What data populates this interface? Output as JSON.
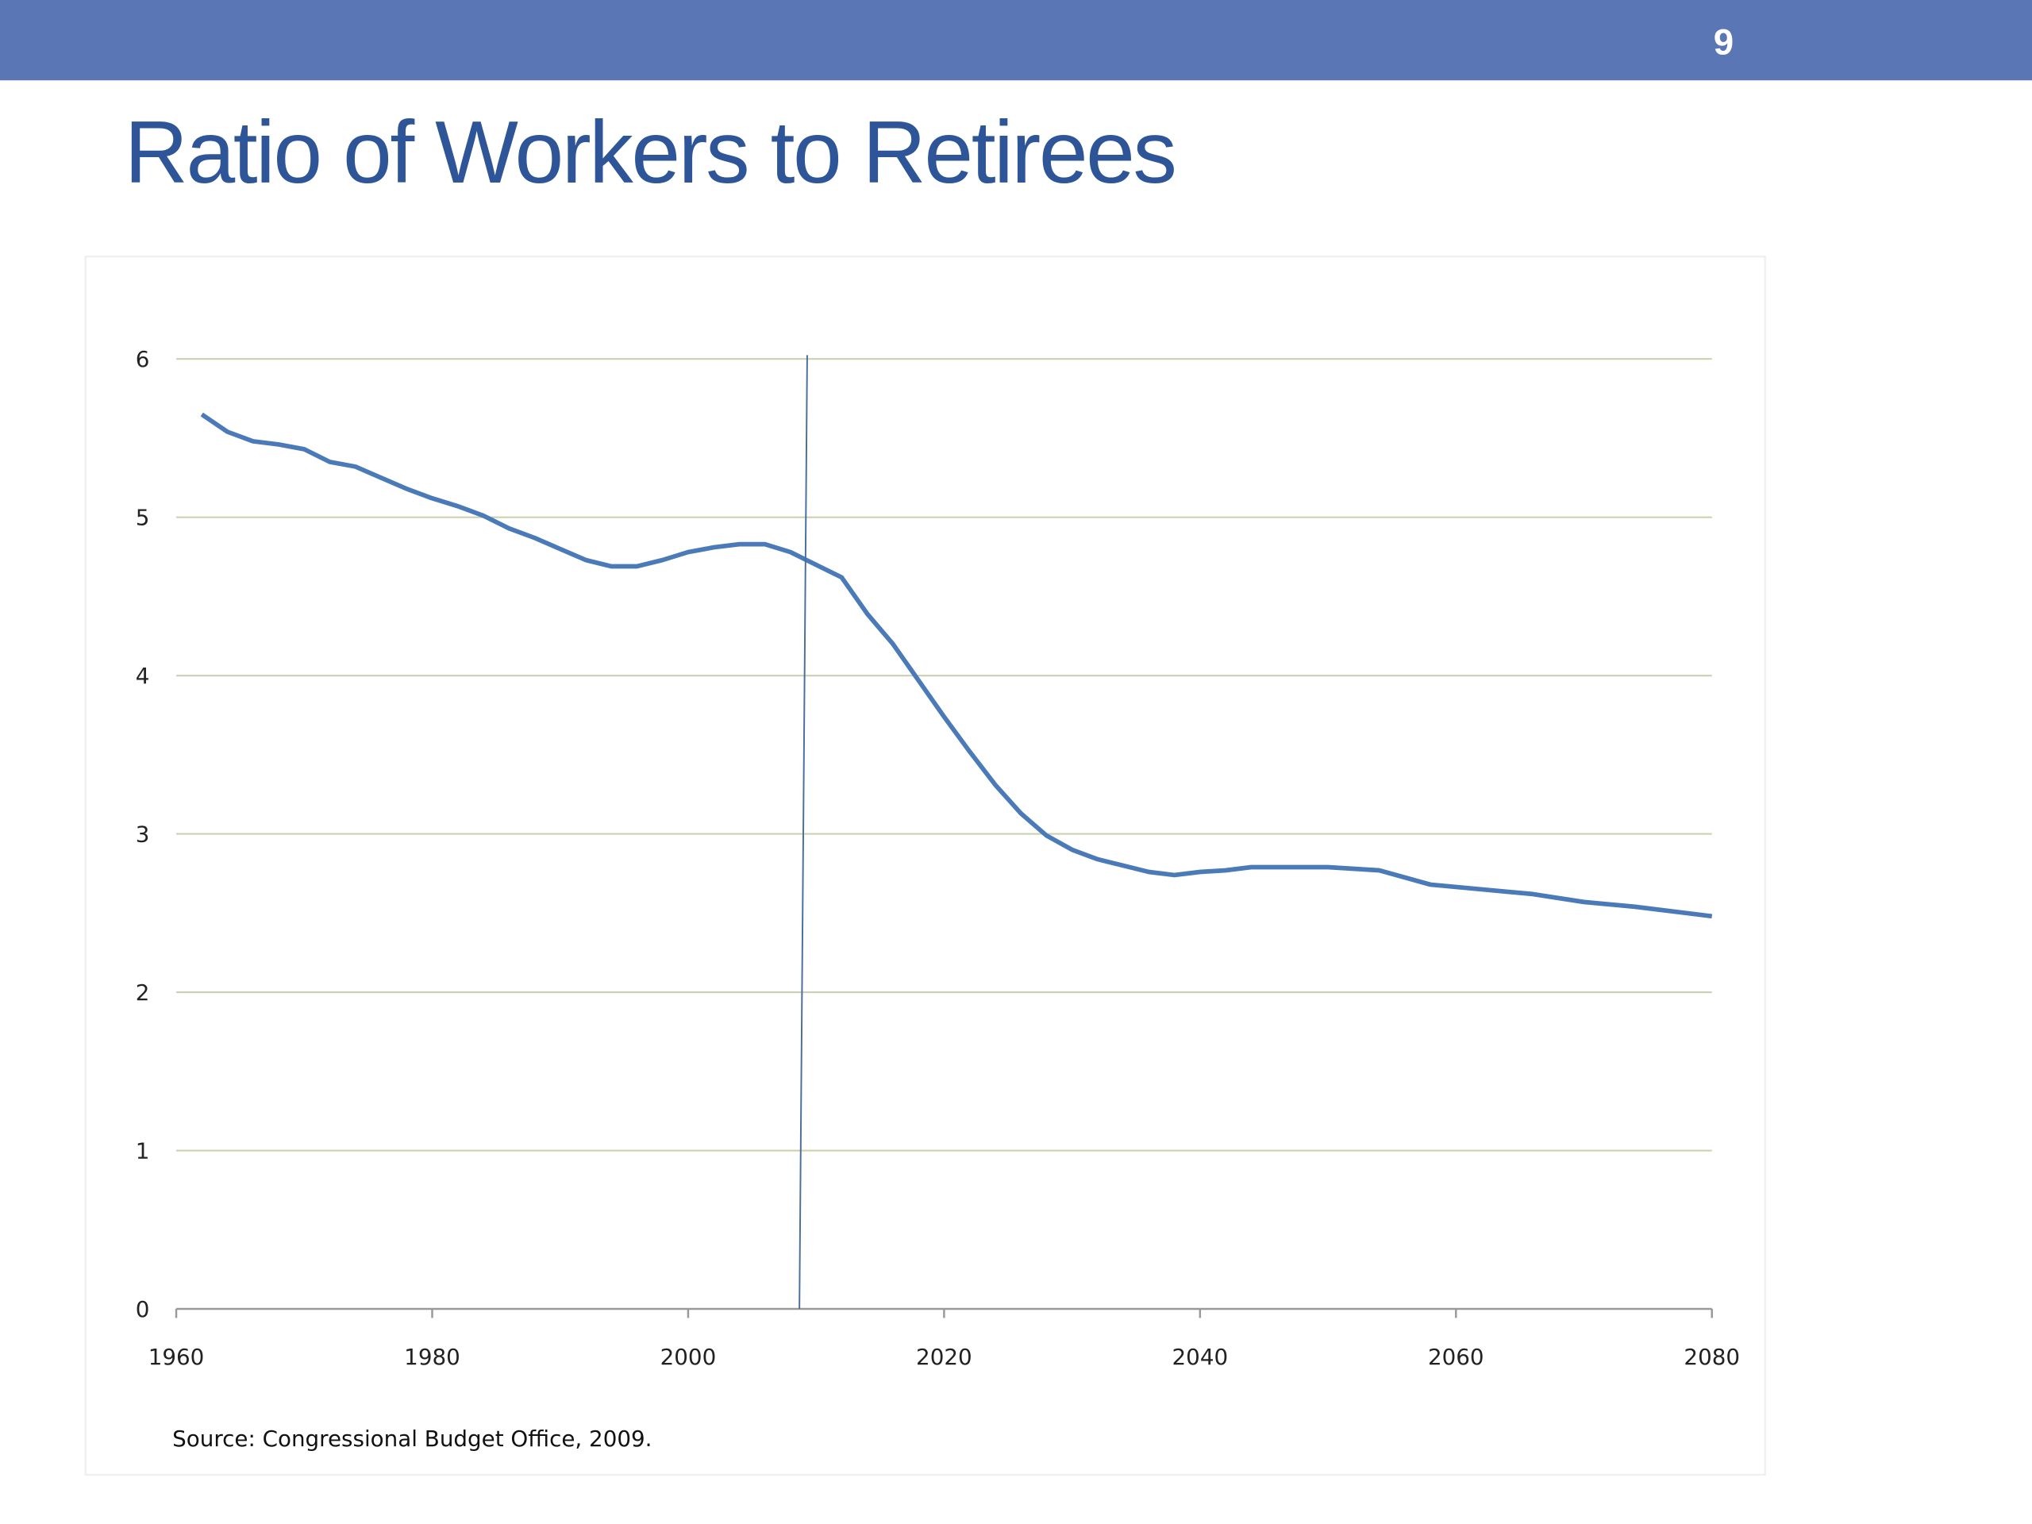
{
  "page_number": "9",
  "chart_data": {
    "type": "line",
    "title": "Ratio of Workers to Retirees",
    "source": "Source:  Congressional Budget Office, 2009.",
    "x": [
      1962,
      1964,
      1966,
      1968,
      1970,
      1972,
      1974,
      1976,
      1978,
      1980,
      1982,
      1984,
      1986,
      1988,
      1990,
      1992,
      1994,
      1996,
      1998,
      2000,
      2002,
      2004,
      2006,
      2008,
      2010,
      2012,
      2014,
      2016,
      2018,
      2020,
      2022,
      2024,
      2026,
      2028,
      2030,
      2032,
      2034,
      2036,
      2038,
      2040,
      2042,
      2044,
      2050,
      2054,
      2058,
      2062,
      2066,
      2070,
      2074,
      2078,
      2080
    ],
    "series": [
      {
        "name": "Ratio",
        "color": "#4a7ab8",
        "values": [
          5.65,
          5.54,
          5.48,
          5.46,
          5.43,
          5.35,
          5.32,
          5.25,
          5.18,
          5.12,
          5.07,
          5.01,
          4.93,
          4.87,
          4.8,
          4.73,
          4.69,
          4.69,
          4.73,
          4.78,
          4.81,
          4.83,
          4.83,
          4.78,
          4.7,
          4.62,
          4.39,
          4.2,
          3.97,
          3.74,
          3.52,
          3.31,
          3.13,
          2.99,
          2.9,
          2.84,
          2.8,
          2.76,
          2.74,
          2.76,
          2.77,
          2.79,
          2.79,
          2.77,
          2.68,
          2.65,
          2.62,
          2.57,
          2.54,
          2.5,
          2.48
        ]
      }
    ],
    "reference_line": {
      "x": 2009
    },
    "xlim": [
      1960,
      2080
    ],
    "xticks": [
      1960,
      1980,
      2000,
      2020,
      2040,
      2060,
      2080
    ],
    "ylim": [
      0,
      6
    ],
    "yticks": [
      0,
      1,
      2,
      3,
      4,
      5,
      6
    ],
    "grid": true
  }
}
